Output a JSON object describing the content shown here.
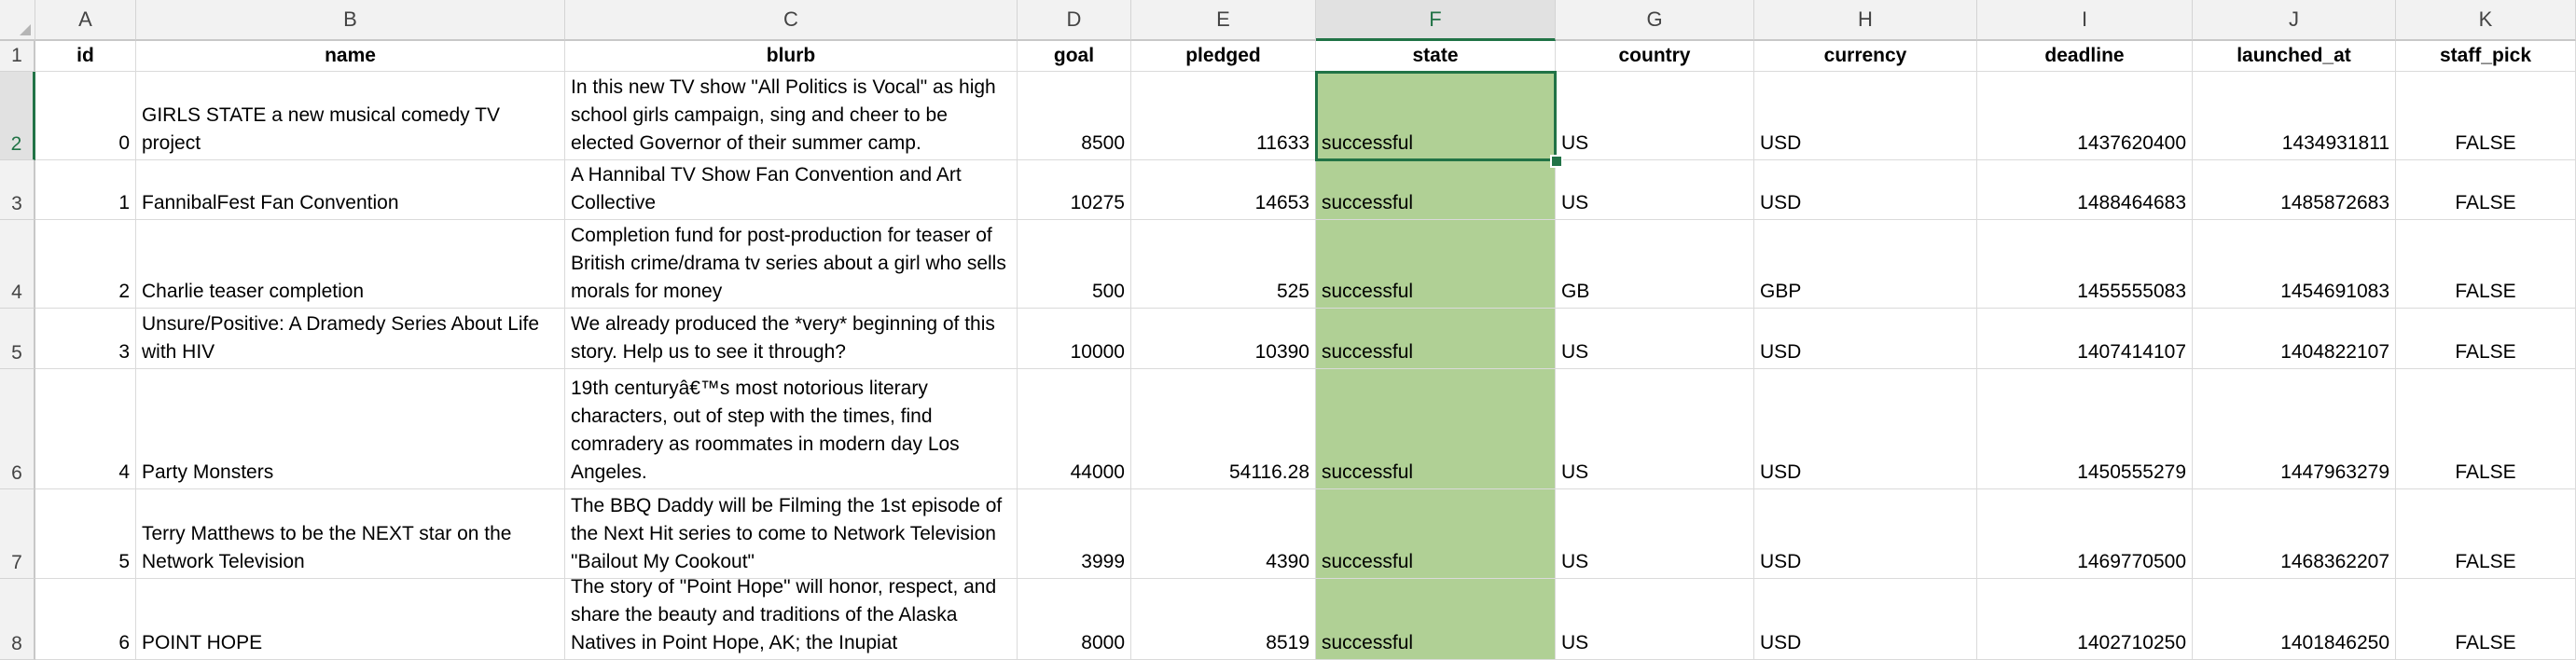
{
  "columns": [
    {
      "letter": "A",
      "header": "id",
      "align": "num"
    },
    {
      "letter": "B",
      "header": "name",
      "align": "txt"
    },
    {
      "letter": "C",
      "header": "blurb",
      "align": "txt"
    },
    {
      "letter": "D",
      "header": "goal",
      "align": "num"
    },
    {
      "letter": "E",
      "header": "pledged",
      "align": "num"
    },
    {
      "letter": "F",
      "header": "state",
      "align": "txt"
    },
    {
      "letter": "G",
      "header": "country",
      "align": "txt"
    },
    {
      "letter": "H",
      "header": "currency",
      "align": "txt"
    },
    {
      "letter": "I",
      "header": "deadline",
      "align": "num"
    },
    {
      "letter": "J",
      "header": "launched_at",
      "align": "num"
    },
    {
      "letter": "K",
      "header": "staff_pick",
      "align": "center"
    }
  ],
  "header_row_number": "1",
  "selected_cell": {
    "col": "F",
    "row": "2"
  },
  "highlight_color": "#b0d095",
  "accent_color": "#217346",
  "rows": [
    {
      "num": "2",
      "cells": [
        "0",
        "GIRLS STATE a new musical comedy TV project",
        "In this new TV show \"All Politics is Vocal\" as high school girls campaign, sing and cheer to be elected Governor of their summer camp.",
        "8500",
        "11633",
        "successful",
        "US",
        "USD",
        "1437620400",
        "1434931811",
        "FALSE"
      ]
    },
    {
      "num": "3",
      "cells": [
        "1",
        "FannibalFest Fan Convention",
        "A Hannibal TV Show Fan Convention and Art Collective",
        "10275",
        "14653",
        "successful",
        "US",
        "USD",
        "1488464683",
        "1485872683",
        "FALSE"
      ]
    },
    {
      "num": "4",
      "cells": [
        "2",
        "Charlie teaser completion",
        "Completion fund for post-production for teaser of British crime/drama tv series about a girl who sells morals for money",
        "500",
        "525",
        "successful",
        "GB",
        "GBP",
        "1455555083",
        "1454691083",
        "FALSE"
      ]
    },
    {
      "num": "5",
      "cells": [
        "3",
        "Unsure/Positive: A Dramedy Series About Life with HIV",
        "We already produced the *very* beginning of this story. Help us to see it through?",
        "10000",
        "10390",
        "successful",
        "US",
        "USD",
        "1407414107",
        "1404822107",
        "FALSE"
      ]
    },
    {
      "num": "6",
      "cells": [
        "4",
        "Party Monsters",
        "19th centuryâ€™s most notorious literary characters, out of step with the times, find comradery as roommates in modern day Los Angeles.",
        "44000",
        "54116.28",
        "successful",
        "US",
        "USD",
        "1450555279",
        "1447963279",
        "FALSE"
      ]
    },
    {
      "num": "7",
      "cells": [
        "5",
        "Terry Matthews to be the NEXT star on the Network Television",
        "The BBQ Daddy will be Filming the 1st episode of the Next Hit series to come to Network Television \"Bailout My Cookout\"",
        "3999",
        "4390",
        "successful",
        "US",
        "USD",
        "1469770500",
        "1468362207",
        "FALSE"
      ]
    },
    {
      "num": "8",
      "cells": [
        "6",
        "POINT HOPE",
        "The story of \"Point Hope\" will honor, respect, and share the beauty and traditions of the Alaska Natives in Point Hope, AK; the Inupiat",
        "8000",
        "8519",
        "successful",
        "US",
        "USD",
        "1402710250",
        "1401846250",
        "FALSE"
      ]
    }
  ]
}
